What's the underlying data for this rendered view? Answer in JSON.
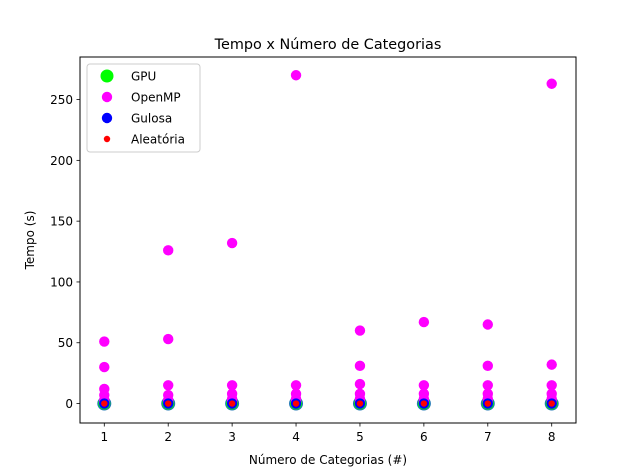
{
  "chart_data": {
    "type": "scatter",
    "title": "Tempo x Número de Categorias",
    "xlabel": "Número de Categorias (#)",
    "ylabel": "Tempo (s)",
    "xlim": [
      0.62,
      8.38
    ],
    "ylim": [
      -16,
      285
    ],
    "xticks": [
      1,
      2,
      3,
      4,
      5,
      6,
      7,
      8
    ],
    "yticks": [
      0,
      50,
      100,
      150,
      200,
      250
    ],
    "legend_position": "upper left",
    "series": [
      {
        "name": "GPU",
        "color": "#00ff00",
        "marker": "large-circle",
        "x": [
          1,
          2,
          3,
          4,
          5,
          6,
          7,
          8
        ],
        "y": [
          0,
          0,
          0,
          0,
          0,
          0,
          0,
          0
        ]
      },
      {
        "name": "OpenMP",
        "color": "#ff00ff",
        "marker": "circle",
        "x": [
          1,
          1,
          1,
          1,
          1,
          1,
          2,
          2,
          2,
          2,
          2,
          2,
          3,
          3,
          3,
          3,
          3,
          3,
          4,
          4,
          4,
          4,
          4,
          4,
          5,
          5,
          5,
          5,
          5,
          5,
          6,
          6,
          6,
          6,
          6,
          6,
          7,
          7,
          7,
          7,
          7,
          7,
          8,
          8,
          8,
          8,
          8,
          8
        ],
        "y": [
          51,
          30,
          12,
          7,
          3,
          1,
          126,
          53,
          15,
          7,
          3,
          1,
          132,
          15,
          8,
          4,
          2,
          1,
          270,
          15,
          8,
          4,
          2,
          1,
          60,
          31,
          16,
          8,
          4,
          1,
          67,
          15,
          8,
          4,
          2,
          1,
          65,
          31,
          15,
          8,
          4,
          1,
          263,
          32,
          15,
          8,
          4,
          1
        ]
      },
      {
        "name": "Gulosa",
        "color": "#0000ff",
        "marker": "circle",
        "x": [
          1,
          2,
          3,
          4,
          5,
          6,
          7,
          8
        ],
        "y": [
          0,
          0,
          0,
          0,
          0,
          0,
          0,
          0
        ]
      },
      {
        "name": "Aleatória",
        "color": "#ff0000",
        "marker": "small-circle",
        "x": [
          1,
          2,
          3,
          4,
          5,
          6,
          7,
          8
        ],
        "y": [
          0,
          0,
          0,
          0,
          0,
          0,
          0,
          0
        ]
      }
    ]
  }
}
